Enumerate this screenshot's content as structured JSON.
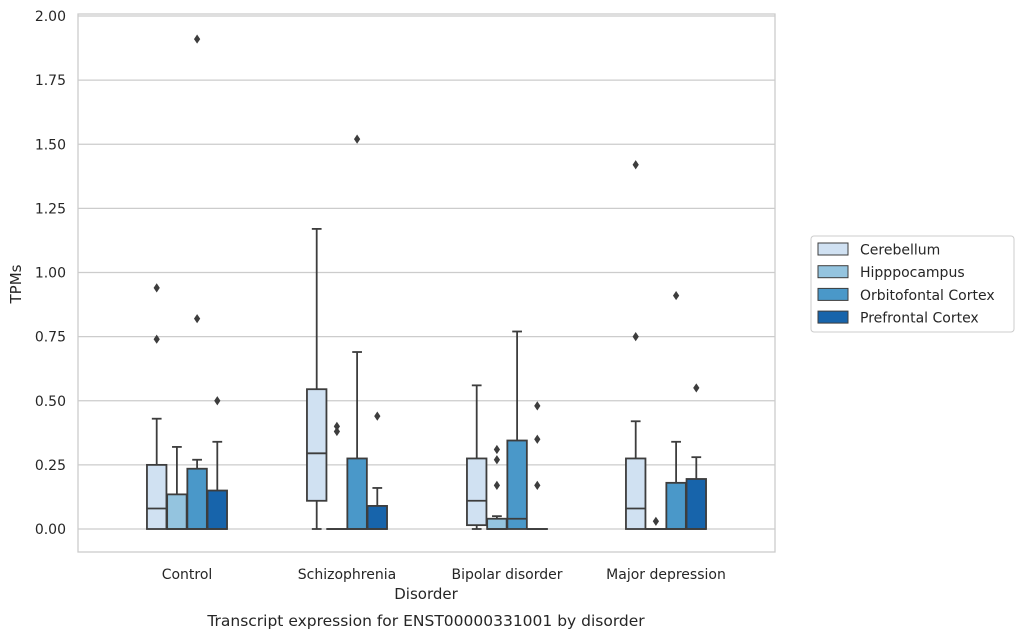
{
  "chart_data": {
    "type": "boxplot",
    "caption": "Transcript expression for ENST00000331001 by disorder",
    "xlabel": "Disorder",
    "ylabel": "TPMs",
    "ylim": [
      -0.09,
      2.01
    ],
    "yticks": [
      "0.00",
      "0.25",
      "0.50",
      "0.75",
      "1.00",
      "1.25",
      "1.50",
      "1.75",
      "2.00"
    ],
    "categories": [
      "Control",
      "Schizophrenia",
      "Bipolar disorder",
      "Major depression"
    ],
    "legend_position": "right",
    "grid": "horizontal",
    "series": [
      {
        "name": "Cerebellum",
        "color": "#d0e1f2",
        "boxes": [
          {
            "min": 0.0,
            "q1": 0.0,
            "median": 0.08,
            "q3": 0.25,
            "max": 0.43,
            "outliers": [
              0.74,
              0.94
            ]
          },
          {
            "min": 0.0,
            "q1": 0.11,
            "median": 0.295,
            "q3": 0.545,
            "max": 1.17,
            "outliers": []
          },
          {
            "min": 0.0,
            "q1": 0.015,
            "median": 0.11,
            "q3": 0.275,
            "max": 0.56,
            "outliers": []
          },
          {
            "min": 0.0,
            "q1": 0.0,
            "median": 0.08,
            "q3": 0.275,
            "max": 0.42,
            "outliers": [
              0.75,
              1.42
            ]
          }
        ]
      },
      {
        "name": "Hipppocampus",
        "color": "#94c4df",
        "boxes": [
          {
            "min": 0.0,
            "q1": 0.0,
            "median": 0.0,
            "q3": 0.135,
            "max": 0.32,
            "outliers": []
          },
          {
            "min": 0.0,
            "q1": 0.0,
            "median": 0.0,
            "q3": 0.0,
            "max": 0.0,
            "outliers": [
              0.38,
              0.4
            ]
          },
          {
            "min": 0.0,
            "q1": 0.0,
            "median": 0.0,
            "q3": 0.04,
            "max": 0.05,
            "outliers": [
              0.17,
              0.27,
              0.31
            ]
          },
          {
            "min": 0.0,
            "q1": 0.0,
            "median": 0.0,
            "q3": 0.0,
            "max": 0.0,
            "outliers": [
              0.03
            ]
          }
        ]
      },
      {
        "name": "Orbitofontal Cortex",
        "color": "#4a98c9",
        "boxes": [
          {
            "min": 0.0,
            "q1": 0.0,
            "median": 0.0,
            "q3": 0.235,
            "max": 0.27,
            "outliers": [
              0.82,
              1.91
            ]
          },
          {
            "min": 0.0,
            "q1": 0.0,
            "median": 0.0,
            "q3": 0.275,
            "max": 0.69,
            "outliers": [
              1.52
            ]
          },
          {
            "min": 0.0,
            "q1": 0.0,
            "median": 0.04,
            "q3": 0.345,
            "max": 0.77,
            "outliers": []
          },
          {
            "min": 0.0,
            "q1": 0.0,
            "median": 0.0,
            "q3": 0.18,
            "max": 0.34,
            "outliers": [
              0.91
            ]
          }
        ]
      },
      {
        "name": "Prefrontal Cortex",
        "color": "#1764ab",
        "boxes": [
          {
            "min": 0.0,
            "q1": 0.0,
            "median": 0.0,
            "q3": 0.15,
            "max": 0.34,
            "outliers": [
              0.5
            ]
          },
          {
            "min": 0.0,
            "q1": 0.0,
            "median": 0.0,
            "q3": 0.09,
            "max": 0.16,
            "outliers": [
              0.44
            ]
          },
          {
            "min": 0.0,
            "q1": 0.0,
            "median": 0.0,
            "q3": 0.0,
            "max": 0.0,
            "outliers": [
              0.17,
              0.35,
              0.48
            ]
          },
          {
            "min": 0.0,
            "q1": 0.0,
            "median": 0.0,
            "q3": 0.195,
            "max": 0.28,
            "outliers": [
              0.55
            ]
          }
        ]
      }
    ]
  }
}
